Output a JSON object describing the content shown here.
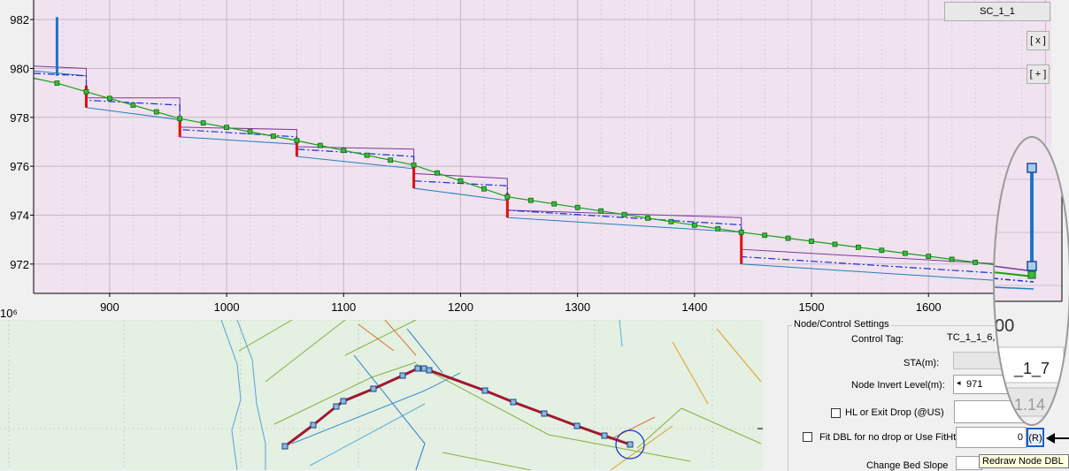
{
  "chart_data": {
    "type": "line",
    "title": "",
    "xlabel": "",
    "ylabel": "",
    "xlim": [
      835,
      1705
    ],
    "ylim": [
      970.8,
      982.8
    ],
    "x_ticks": [
      900,
      1000,
      1100,
      1200,
      1300,
      1400,
      1500,
      1600
    ],
    "y_ticks": [
      972,
      974,
      976,
      978,
      980,
      982
    ],
    "exponent_label": "10⁶",
    "grid": true,
    "series": [
      {
        "type": "line",
        "values": [
          [
            835,
            979.6
          ],
          [
            855,
            979.4
          ],
          [
            880,
            979.05
          ],
          [
            960,
            977.95
          ],
          [
            1060,
            977.05
          ],
          [
            1160,
            976.05
          ],
          [
            1240,
            974.75
          ],
          [
            1440,
            973.3
          ],
          [
            1700,
            971.7
          ]
        ]
      },
      {
        "type": "line",
        "values": [
          [
            835,
            979.9
          ],
          [
            880,
            979.7
          ],
          [
            880,
            978.4
          ],
          [
            960,
            977.9
          ],
          [
            960,
            977.2
          ],
          [
            1060,
            976.9
          ],
          [
            1060,
            976.4
          ],
          [
            1160,
            975.9
          ],
          [
            1160,
            975.1
          ],
          [
            1240,
            974.6
          ],
          [
            1240,
            973.9
          ],
          [
            1440,
            973.3
          ],
          [
            1440,
            972.0
          ],
          [
            1700,
            971.2
          ]
        ]
      },
      {
        "type": "line",
        "values": [
          [
            835,
            980.1
          ],
          [
            880,
            980.0
          ],
          [
            880,
            978.8
          ],
          [
            960,
            978.8
          ],
          [
            960,
            977.6
          ],
          [
            1060,
            977.5
          ],
          [
            1060,
            976.8
          ],
          [
            1160,
            976.7
          ],
          [
            1160,
            975.7
          ],
          [
            1240,
            975.5
          ],
          [
            1240,
            974.2
          ],
          [
            1440,
            973.9
          ],
          [
            1440,
            972.6
          ],
          [
            1700,
            971.9
          ]
        ]
      },
      {
        "type": "line",
        "values": [
          [
            835,
            979.8
          ],
          [
            880,
            979.7
          ],
          [
            880,
            978.7
          ],
          [
            960,
            978.5
          ],
          [
            960,
            977.5
          ],
          [
            1060,
            977.2
          ],
          [
            1060,
            976.7
          ],
          [
            1160,
            976.4
          ],
          [
            1160,
            975.4
          ],
          [
            1240,
            975.2
          ],
          [
            1240,
            974.2
          ],
          [
            1440,
            973.6
          ],
          [
            1440,
            972.3
          ],
          [
            1700,
            971.5
          ]
        ]
      },
      {
        "type": "bar",
        "values": [
          [
            855,
            979.7,
            982.1
          ]
        ]
      },
      {
        "type": "bar",
        "values": [
          [
            880,
            978.4,
            979.3
          ],
          [
            960,
            977.2,
            978.0
          ],
          [
            1060,
            976.4,
            977.1
          ],
          [
            1160,
            975.1,
            976.1
          ],
          [
            1240,
            973.9,
            974.9
          ],
          [
            1440,
            972.0,
            973.3
          ]
        ]
      }
    ],
    "markers_x": [
      855,
      880,
      900,
      920,
      940,
      960,
      980,
      1000,
      1020,
      1040,
      1060,
      1080,
      1100,
      1120,
      1140,
      1160,
      1180,
      1200,
      1220,
      1240,
      1260,
      1280,
      1300,
      1320,
      1340,
      1360,
      1380,
      1400,
      1420,
      1440,
      1460,
      1480,
      1500,
      1520,
      1540,
      1560,
      1580,
      1600,
      1620,
      1640,
      1660,
      1680,
      1700
    ]
  },
  "profile": {
    "sc_button": "SC_1_1",
    "close_button": "[ x ]",
    "add_button": "[ + ]"
  },
  "magnifier": {
    "zero_label": "00",
    "tag_label": "_1_7",
    "value_label": "1.14"
  },
  "panel": {
    "group_title": "Node/Control Settings",
    "control_tag_label": "Control Tag:",
    "control_tag_value": "TC_1_1_6,",
    "sta_label": "STA(m):",
    "node_invert_label": "Node Invert Level(m):",
    "node_invert_value": "971",
    "hl_label": "HL or Exit Drop (@US)",
    "fit_label": "Fit DBL for no drop or Use FitHt:",
    "fit_value": "0",
    "r_button": "(R)",
    "change_bed_label": "Change Bed Slope"
  },
  "tooltip": "Redraw Node DBL"
}
